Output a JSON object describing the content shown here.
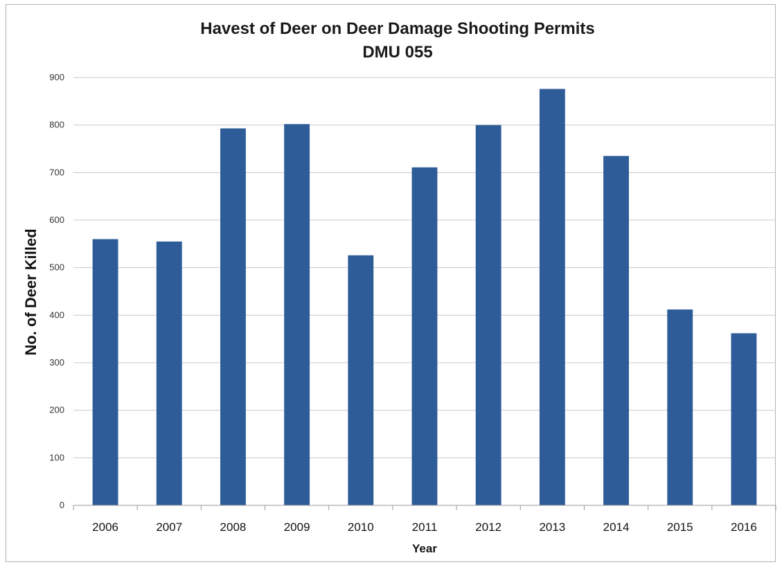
{
  "chart_data": {
    "type": "bar",
    "title": "Havest of Deer on Deer Damage Shooting Permits",
    "subtitle": "DMU 055",
    "xlabel": "Year",
    "ylabel": "No. of Deer Killed",
    "categories": [
      "2006",
      "2007",
      "2008",
      "2009",
      "2010",
      "2011",
      "2012",
      "2013",
      "2014",
      "2015",
      "2016"
    ],
    "values": [
      560,
      555,
      793,
      802,
      526,
      711,
      800,
      876,
      735,
      412,
      362
    ],
    "ylim": [
      0,
      900
    ],
    "yticks": [
      0,
      100,
      200,
      300,
      400,
      500,
      600,
      700,
      800,
      900
    ],
    "grid": true,
    "legend": "none",
    "bar_color": "#2e5c99"
  }
}
